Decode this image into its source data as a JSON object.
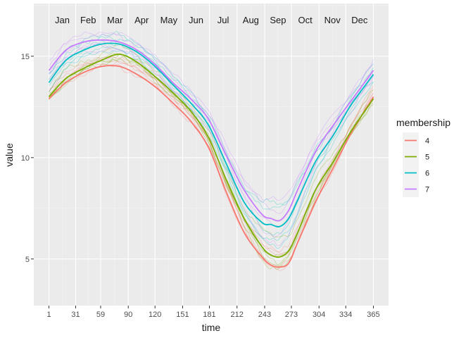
{
  "chart_data": {
    "type": "line",
    "xlabel": "time",
    "ylabel": "value",
    "x_ticks": [
      1,
      31,
      59,
      90,
      120,
      151,
      181,
      212,
      243,
      273,
      304,
      334,
      365
    ],
    "y_ticks": [
      5,
      10,
      15
    ],
    "xlim": [
      -16,
      382
    ],
    "ylim": [
      2.7,
      17.6
    ],
    "grid": true,
    "month_labels": [
      {
        "label": "Jan",
        "x": 16
      },
      {
        "label": "Feb",
        "x": 45
      },
      {
        "label": "Mar",
        "x": 75
      },
      {
        "label": "Apr",
        "x": 105
      },
      {
        "label": "May",
        "x": 135.5
      },
      {
        "label": "Jun",
        "x": 166
      },
      {
        "label": "Jul",
        "x": 196.5
      },
      {
        "label": "Aug",
        "x": 227.5
      },
      {
        "label": "Sep",
        "x": 258
      },
      {
        "label": "Oct",
        "x": 288.5
      },
      {
        "label": "Nov",
        "x": 319
      },
      {
        "label": "Dec",
        "x": 349.5
      }
    ],
    "legend": {
      "title": "membership",
      "position": "right",
      "entries": [
        "4",
        "5",
        "6",
        "7"
      ]
    },
    "series_x": [
      1,
      20,
      40,
      60,
      80,
      100,
      120,
      140,
      160,
      180,
      200,
      220,
      240,
      250,
      260,
      270,
      280,
      300,
      320,
      340,
      365
    ],
    "series": [
      {
        "name": "4",
        "color": "#F8766D",
        "values": [
          12.9,
          13.7,
          14.2,
          14.5,
          14.5,
          14.1,
          13.5,
          12.7,
          11.8,
          10.5,
          8.3,
          6.3,
          5.1,
          4.7,
          4.6,
          4.8,
          5.8,
          7.8,
          9.5,
          11.2,
          13.0
        ]
      },
      {
        "name": "5",
        "color": "#7CAE00",
        "values": [
          13.0,
          13.9,
          14.4,
          14.8,
          15.1,
          14.7,
          14.0,
          13.2,
          12.3,
          11.0,
          8.9,
          7.0,
          5.6,
          5.2,
          5.1,
          5.4,
          6.3,
          8.4,
          9.8,
          11.3,
          12.9
        ]
      },
      {
        "name": "6",
        "color": "#00BFC4",
        "values": [
          13.7,
          14.8,
          15.3,
          15.6,
          15.6,
          15.2,
          14.5,
          13.6,
          12.7,
          11.6,
          9.7,
          7.8,
          6.8,
          6.7,
          6.6,
          7.0,
          7.9,
          9.8,
          11.1,
          12.6,
          14.1
        ]
      },
      {
        "name": "7",
        "color": "#C77CFF",
        "values": [
          14.3,
          15.3,
          15.7,
          15.8,
          15.7,
          15.3,
          14.6,
          13.7,
          12.9,
          11.9,
          10.1,
          8.4,
          7.2,
          7.0,
          6.9,
          7.4,
          8.4,
          10.3,
          11.6,
          12.8,
          14.3
        ]
      }
    ]
  }
}
